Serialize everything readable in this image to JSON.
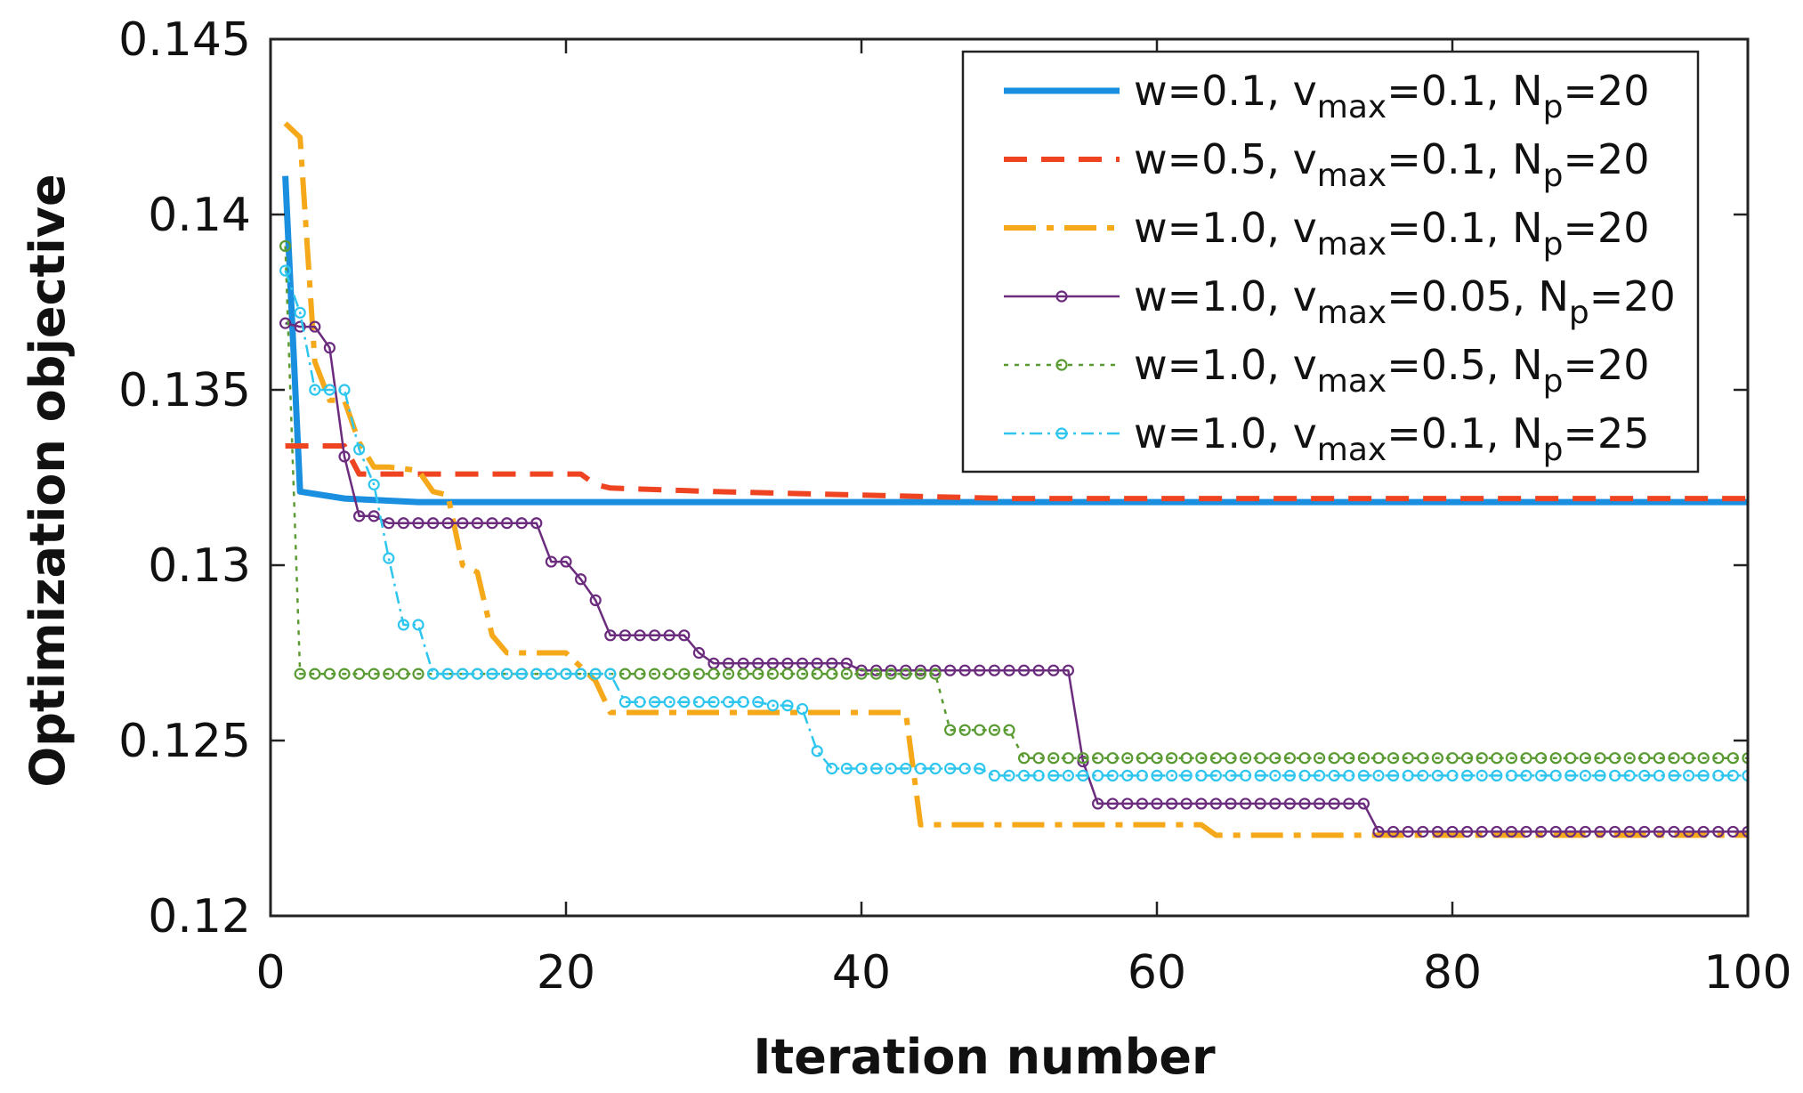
{
  "chart_data": {
    "type": "line",
    "title": "",
    "xlabel": "Iteration number",
    "ylabel": "Optimization objective",
    "xlim": [
      0,
      100
    ],
    "ylim": [
      0.12,
      0.145
    ],
    "xticks": [
      0,
      20,
      40,
      60,
      80,
      100
    ],
    "xtick_labels": [
      "0",
      "20",
      "40",
      "60",
      "80",
      "100"
    ],
    "yticks": [
      0.12,
      0.125,
      0.13,
      0.135,
      0.14,
      0.145
    ],
    "ytick_labels": [
      "0.12",
      "0.125",
      "0.13",
      "0.135",
      "0.14",
      "0.145"
    ],
    "grid": false,
    "legend_position": "top-right",
    "series": [
      {
        "legend": {
          "a": "w=0.1, v",
          "sub1": "max",
          "b": "=0.1, N",
          "sub2": "p",
          "c": "=20"
        },
        "color": "#1a8fe0",
        "style": "solid-thick",
        "x": [
          1,
          2,
          5,
          10,
          20,
          40,
          60,
          80,
          100
        ],
        "y": [
          0.1411,
          0.1321,
          0.1319,
          0.1318,
          0.1318,
          0.1318,
          0.1318,
          0.1318,
          0.1318
        ]
      },
      {
        "legend": {
          "a": "w=0.5, v",
          "sub1": "max",
          "b": "=0.1, N",
          "sub2": "p",
          "c": "=20"
        },
        "color": "#ee4422",
        "style": "dashed",
        "x": [
          1,
          5,
          6,
          21,
          22,
          23,
          30,
          40,
          50,
          60,
          80,
          100
        ],
        "y": [
          0.1334,
          0.1334,
          0.1326,
          0.1326,
          0.1323,
          0.1322,
          0.1321,
          0.132,
          0.1319,
          0.1319,
          0.1319,
          0.1319
        ]
      },
      {
        "legend": {
          "a": "w=1.0, v",
          "sub1": "max",
          "b": "=0.1, N",
          "sub2": "p",
          "c": "=20"
        },
        "color": "#f5a91a",
        "style": "dashdot",
        "x": [
          1,
          2,
          3,
          4,
          5,
          6,
          7,
          8,
          10,
          11,
          12,
          13,
          14,
          15,
          16,
          20,
          22,
          23,
          43,
          44,
          63,
          64,
          100
        ],
        "y": [
          0.1426,
          0.1422,
          0.1358,
          0.1347,
          0.1347,
          0.1335,
          0.1328,
          0.1328,
          0.1327,
          0.1321,
          0.132,
          0.13,
          0.1298,
          0.128,
          0.1275,
          0.1275,
          0.1267,
          0.1258,
          0.1258,
          0.1226,
          0.1226,
          0.1223,
          0.1223
        ]
      },
      {
        "legend": {
          "a": "w=1.0, v",
          "sub1": "max",
          "b": "=0.05, N",
          "sub2": "p",
          "c": "=20"
        },
        "color": "#6b2c7e",
        "style": "solid-circle",
        "x": [
          1,
          2,
          3,
          4,
          5,
          6,
          7,
          8,
          9,
          10,
          11,
          12,
          13,
          14,
          15,
          16,
          17,
          18,
          19,
          20,
          21,
          22,
          23,
          24,
          25,
          26,
          27,
          28,
          29,
          30,
          31,
          32,
          33,
          34,
          35,
          36,
          37,
          38,
          39,
          40,
          41,
          42,
          43,
          44,
          45,
          46,
          47,
          48,
          49,
          50,
          51,
          52,
          53,
          54,
          55,
          56,
          57,
          58,
          59,
          60,
          61,
          62,
          63,
          64,
          65,
          66,
          67,
          68,
          69,
          70,
          71,
          72,
          73,
          74,
          75,
          76,
          77,
          78,
          79,
          80,
          81,
          82,
          83,
          84,
          85,
          86,
          87,
          88,
          89,
          90,
          91,
          92,
          93,
          94,
          95,
          96,
          97,
          98,
          99,
          100
        ],
        "y": [
          0.1369,
          0.1368,
          0.1368,
          0.1362,
          0.1331,
          0.1314,
          0.1314,
          0.1312,
          0.1312,
          0.1312,
          0.1312,
          0.1312,
          0.1312,
          0.1312,
          0.1312,
          0.1312,
          0.1312,
          0.1312,
          0.1301,
          0.1301,
          0.1296,
          0.129,
          0.128,
          0.128,
          0.128,
          0.128,
          0.128,
          0.128,
          0.1275,
          0.1272,
          0.1272,
          0.1272,
          0.1272,
          0.1272,
          0.1272,
          0.1272,
          0.1272,
          0.1272,
          0.1272,
          0.127,
          0.127,
          0.127,
          0.127,
          0.127,
          0.127,
          0.127,
          0.127,
          0.127,
          0.127,
          0.127,
          0.127,
          0.127,
          0.127,
          0.127,
          0.1244,
          0.1232,
          0.1232,
          0.1232,
          0.1232,
          0.1232,
          0.1232,
          0.1232,
          0.1232,
          0.1232,
          0.1232,
          0.1232,
          0.1232,
          0.1232,
          0.1232,
          0.1232,
          0.1232,
          0.1232,
          0.1232,
          0.1232,
          0.1224,
          0.1224,
          0.1224,
          0.1224,
          0.1224,
          0.1224,
          0.1224,
          0.1224,
          0.1224,
          0.1224,
          0.1224,
          0.1224,
          0.1224,
          0.1224,
          0.1224,
          0.1224,
          0.1224,
          0.1224,
          0.1224,
          0.1224,
          0.1224,
          0.1224,
          0.1224,
          0.1224,
          0.1224,
          0.1224
        ]
      },
      {
        "legend": {
          "a": "w=1.0, v",
          "sub1": "max",
          "b": "=0.5, N",
          "sub2": "p",
          "c": "=20"
        },
        "color": "#5a9a32",
        "style": "dotted-circle",
        "x": [
          1,
          2,
          3,
          4,
          5,
          6,
          7,
          8,
          9,
          10,
          11,
          12,
          13,
          14,
          15,
          16,
          17,
          18,
          19,
          20,
          21,
          22,
          23,
          24,
          25,
          26,
          27,
          28,
          29,
          30,
          31,
          32,
          33,
          34,
          35,
          36,
          37,
          38,
          39,
          40,
          41,
          42,
          43,
          44,
          45,
          46,
          47,
          48,
          49,
          50,
          51,
          52,
          53,
          54,
          55,
          56,
          57,
          58,
          59,
          60,
          61,
          62,
          63,
          64,
          65,
          66,
          67,
          68,
          69,
          70,
          71,
          72,
          73,
          74,
          75,
          76,
          77,
          78,
          79,
          80,
          81,
          82,
          83,
          84,
          85,
          86,
          87,
          88,
          89,
          90,
          91,
          92,
          93,
          94,
          95,
          96,
          97,
          98,
          99,
          100
        ],
        "y": [
          0.1391,
          0.1269,
          0.1269,
          0.1269,
          0.1269,
          0.1269,
          0.1269,
          0.1269,
          0.1269,
          0.1269,
          0.1269,
          0.1269,
          0.1269,
          0.1269,
          0.1269,
          0.1269,
          0.1269,
          0.1269,
          0.1269,
          0.1269,
          0.1269,
          0.1269,
          0.1269,
          0.1269,
          0.1269,
          0.1269,
          0.1269,
          0.1269,
          0.1269,
          0.1269,
          0.1269,
          0.1269,
          0.1269,
          0.1269,
          0.1269,
          0.1269,
          0.1269,
          0.1269,
          0.1269,
          0.1269,
          0.1269,
          0.1269,
          0.1269,
          0.1269,
          0.1269,
          0.1253,
          0.1253,
          0.1253,
          0.1253,
          0.1253,
          0.1245,
          0.1245,
          0.1245,
          0.1245,
          0.1245,
          0.1245,
          0.1245,
          0.1245,
          0.1245,
          0.1245,
          0.1245,
          0.1245,
          0.1245,
          0.1245,
          0.1245,
          0.1245,
          0.1245,
          0.1245,
          0.1245,
          0.1245,
          0.1245,
          0.1245,
          0.1245,
          0.1245,
          0.1245,
          0.1245,
          0.1245,
          0.1245,
          0.1245,
          0.1245,
          0.1245,
          0.1245,
          0.1245,
          0.1245,
          0.1245,
          0.1245,
          0.1245,
          0.1245,
          0.1245,
          0.1245,
          0.1245,
          0.1245,
          0.1245,
          0.1245,
          0.1245,
          0.1245,
          0.1245,
          0.1245,
          0.1245,
          0.1245
        ]
      },
      {
        "legend": {
          "a": "w=1.0, v",
          "sub1": "max",
          "b": "=0.1, N",
          "sub2": "p",
          "c": "=25"
        },
        "color": "#2ec6ee",
        "style": "dashdot-circle",
        "x": [
          1,
          2,
          3,
          4,
          5,
          6,
          7,
          8,
          9,
          10,
          11,
          12,
          13,
          14,
          15,
          16,
          17,
          18,
          19,
          20,
          21,
          22,
          23,
          24,
          25,
          26,
          27,
          28,
          29,
          30,
          31,
          32,
          33,
          34,
          35,
          36,
          37,
          38,
          39,
          40,
          41,
          42,
          43,
          44,
          45,
          46,
          47,
          48,
          49,
          50,
          51,
          52,
          53,
          54,
          55,
          56,
          57,
          58,
          59,
          60,
          61,
          62,
          63,
          64,
          65,
          66,
          67,
          68,
          69,
          70,
          71,
          72,
          73,
          74,
          75,
          76,
          77,
          78,
          79,
          80,
          81,
          82,
          83,
          84,
          85,
          86,
          87,
          88,
          89,
          90,
          91,
          92,
          93,
          94,
          95,
          96,
          97,
          98,
          99,
          100
        ],
        "y": [
          0.1384,
          0.1372,
          0.135,
          0.135,
          0.135,
          0.1333,
          0.1323,
          0.1302,
          0.1283,
          0.1283,
          0.1269,
          0.1269,
          0.1269,
          0.1269,
          0.1269,
          0.1269,
          0.1269,
          0.1269,
          0.1269,
          0.1269,
          0.1269,
          0.1269,
          0.1269,
          0.1261,
          0.1261,
          0.1261,
          0.1261,
          0.1261,
          0.1261,
          0.1261,
          0.1261,
          0.1261,
          0.1261,
          0.126,
          0.126,
          0.1259,
          0.1247,
          0.1242,
          0.1242,
          0.1242,
          0.1242,
          0.1242,
          0.1242,
          0.1242,
          0.1242,
          0.1242,
          0.1242,
          0.1242,
          0.124,
          0.124,
          0.124,
          0.124,
          0.124,
          0.124,
          0.124,
          0.124,
          0.124,
          0.124,
          0.124,
          0.124,
          0.124,
          0.124,
          0.124,
          0.124,
          0.124,
          0.124,
          0.124,
          0.124,
          0.124,
          0.124,
          0.124,
          0.124,
          0.124,
          0.124,
          0.124,
          0.124,
          0.124,
          0.124,
          0.124,
          0.124,
          0.124,
          0.124,
          0.124,
          0.124,
          0.124,
          0.124,
          0.124,
          0.124,
          0.124,
          0.124,
          0.124,
          0.124,
          0.124,
          0.124,
          0.124,
          0.124,
          0.124,
          0.124,
          0.124,
          0.124
        ]
      }
    ]
  }
}
